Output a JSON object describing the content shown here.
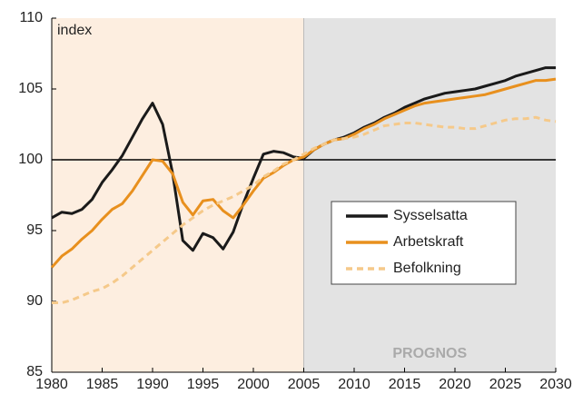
{
  "chart_data": {
    "type": "line",
    "y_label": "index",
    "annotation": "PROGNOS",
    "x": [
      1980,
      1981,
      1982,
      1983,
      1984,
      1985,
      1986,
      1987,
      1988,
      1989,
      1990,
      1991,
      1992,
      1993,
      1994,
      1995,
      1996,
      1997,
      1998,
      1999,
      2000,
      2001,
      2002,
      2003,
      2004,
      2005,
      2006,
      2007,
      2008,
      2009,
      2010,
      2011,
      2012,
      2013,
      2014,
      2015,
      2016,
      2017,
      2018,
      2019,
      2020,
      2021,
      2022,
      2023,
      2024,
      2025,
      2026,
      2027,
      2028,
      2029,
      2030
    ],
    "series": [
      {
        "name": "Sysselsatta",
        "color": "#1a1a1a",
        "dashed": false,
        "values": [
          95.9,
          96.3,
          96.2,
          96.5,
          97.2,
          98.4,
          99.3,
          100.3,
          101.6,
          102.9,
          104.0,
          102.5,
          99.0,
          94.3,
          93.6,
          94.8,
          94.5,
          93.7,
          94.9,
          96.9,
          98.7,
          100.4,
          100.6,
          100.5,
          100.2,
          100.1,
          100.7,
          101.1,
          101.4,
          101.6,
          101.9,
          102.3,
          102.6,
          103.0,
          103.3,
          103.7,
          104.0,
          104.3,
          104.5,
          104.7,
          104.8,
          104.9,
          105.0,
          105.2,
          105.4,
          105.6,
          105.9,
          106.1,
          106.3,
          106.5,
          106.5
        ]
      },
      {
        "name": "Arbetskraft",
        "color": "#e8901e",
        "dashed": false,
        "values": [
          92.4,
          93.2,
          93.7,
          94.4,
          95.0,
          95.8,
          96.5,
          96.9,
          97.8,
          98.9,
          100.0,
          99.9,
          99.0,
          97.0,
          96.1,
          97.1,
          97.2,
          96.4,
          95.9,
          96.8,
          97.8,
          98.7,
          99.1,
          99.6,
          100.0,
          100.2,
          100.7,
          101.1,
          101.4,
          101.5,
          101.8,
          102.2,
          102.5,
          102.9,
          103.2,
          103.5,
          103.8,
          104.0,
          104.1,
          104.2,
          104.3,
          104.4,
          104.5,
          104.6,
          104.8,
          105.0,
          105.2,
          105.4,
          105.6,
          105.6,
          105.7
        ]
      },
      {
        "name": "Befolkning",
        "color": "#f5c98a",
        "dashed": true,
        "values": [
          89.9,
          89.9,
          90.1,
          90.4,
          90.7,
          90.9,
          91.3,
          91.8,
          92.4,
          93.0,
          93.6,
          94.2,
          94.8,
          95.4,
          95.9,
          96.4,
          96.8,
          97.1,
          97.4,
          97.8,
          98.2,
          98.8,
          99.2,
          99.7,
          100.0,
          100.4,
          100.8,
          101.1,
          101.4,
          101.5,
          101.6,
          101.8,
          102.1,
          102.4,
          102.5,
          102.6,
          102.6,
          102.5,
          102.4,
          102.3,
          102.3,
          102.2,
          102.2,
          102.4,
          102.6,
          102.8,
          102.9,
          102.9,
          103.0,
          102.8,
          102.7
        ]
      }
    ],
    "xlim": [
      1980,
      2030
    ],
    "xticks": [
      1980,
      1985,
      1990,
      1995,
      2000,
      2005,
      2010,
      2015,
      2020,
      2025,
      2030
    ],
    "ylim": [
      85,
      110
    ],
    "yticks": [
      85,
      90,
      95,
      100,
      105,
      110
    ],
    "reference_line": 100,
    "regions": [
      {
        "xlim": [
          1980,
          2005
        ],
        "color": "#fdeee0"
      },
      {
        "xlim": [
          2005,
          2030
        ],
        "color": "#e3e3e3"
      }
    ],
    "legend": "right"
  }
}
